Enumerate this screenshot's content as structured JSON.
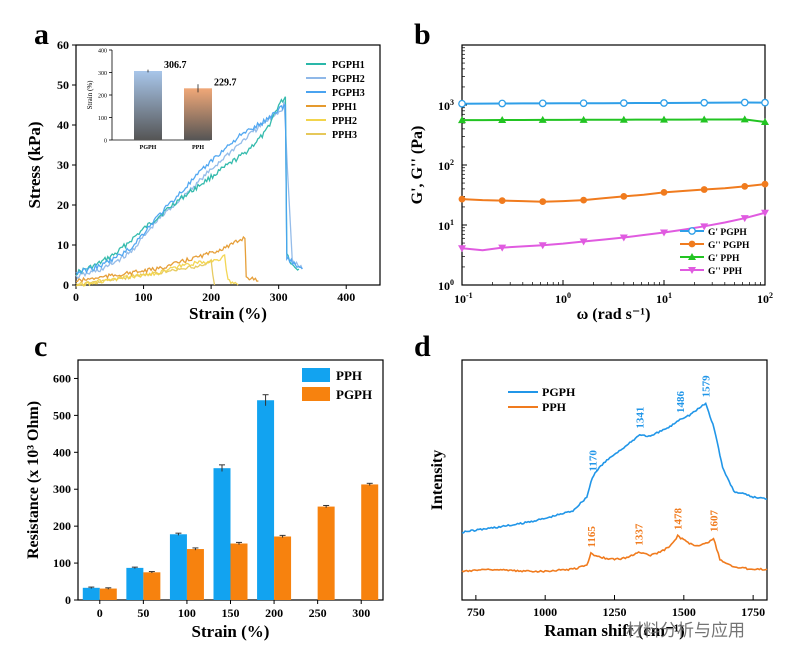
{
  "chart_data": [
    {
      "panel": "a",
      "type": "line",
      "title": "",
      "xlabel": "Strain (%)",
      "ylabel": "Stress (kPa)",
      "xlim": [
        0,
        450
      ],
      "ylim": [
        0,
        60
      ],
      "xticks": [
        "0",
        "100",
        "200",
        "300",
        "400"
      ],
      "yticks": [
        "0",
        "10",
        "20",
        "30",
        "40",
        "50",
        "60"
      ],
      "legend_position": "top-right",
      "series": [
        {
          "name": "PGPH1",
          "color": "#2ab7a9",
          "x": [
            0,
            30,
            60,
            100,
            150,
            200,
            250,
            280,
            300,
            310,
            312,
            320,
            330
          ],
          "y": [
            3,
            5,
            8,
            14,
            21,
            27,
            33,
            38,
            45,
            47,
            8,
            5,
            4
          ]
        },
        {
          "name": "PGPH2",
          "color": "#8fb8e8",
          "x": [
            0,
            40,
            80,
            120,
            170,
            220,
            260,
            290,
            305,
            308,
            320,
            335
          ],
          "y": [
            2,
            4,
            8,
            16,
            24,
            32,
            38,
            42,
            44,
            46,
            6,
            4
          ]
        },
        {
          "name": "PGPH3",
          "color": "#4aa3f0",
          "x": [
            0,
            40,
            80,
            120,
            160,
            200,
            240,
            280,
            300,
            310,
            312,
            325,
            335
          ],
          "y": [
            3,
            5,
            9,
            17,
            24,
            31,
            37,
            41,
            44,
            45,
            7,
            5,
            4
          ]
        },
        {
          "name": "PPH1",
          "color": "#e59a2e",
          "x": [
            0,
            40,
            80,
            120,
            160,
            200,
            230,
            250,
            252,
            270
          ],
          "y": [
            1,
            2,
            3,
            4,
            6,
            8,
            10,
            12,
            2,
            1
          ]
        },
        {
          "name": "PPH2",
          "color": "#f2d44c",
          "x": [
            0,
            40,
            80,
            120,
            160,
            200,
            220,
            225,
            240
          ],
          "y": [
            0,
            1,
            2,
            3,
            5,
            6,
            7,
            1,
            0
          ]
        },
        {
          "name": "PPH3",
          "color": "#e6c85a",
          "x": [
            0,
            40,
            80,
            120,
            160,
            190,
            200,
            205
          ],
          "y": [
            0,
            1,
            2,
            3,
            4,
            5,
            6,
            0
          ]
        }
      ],
      "inset": {
        "type": "bar",
        "ylabel": "Strain (%)",
        "ylim": [
          0,
          400
        ],
        "yticks": [
          "0",
          "100",
          "200",
          "300",
          "400"
        ],
        "categories": [
          "PGPH",
          "PPH"
        ],
        "values": [
          306.7,
          229.7
        ],
        "errors": [
          6,
          18
        ],
        "value_labels": [
          "306.7",
          "229.7"
        ],
        "colors": [
          "#a8c6ea",
          "#f0a878"
        ]
      }
    },
    {
      "panel": "b",
      "type": "line",
      "title": "",
      "xlabel": "ω (rad s⁻¹)",
      "ylabel": "G', G'' (Pa)",
      "xscale": "log",
      "yscale": "log",
      "xlim": [
        0.1,
        100
      ],
      "ylim": [
        1,
        10000
      ],
      "legend_position": "bottom-right",
      "series": [
        {
          "name": "G' PGPH",
          "color": "#2f9fe8",
          "marker": "circle-open",
          "x": [
            0.1,
            0.16,
            0.25,
            0.4,
            0.63,
            1,
            1.6,
            2.5,
            4,
            6.3,
            10,
            16,
            25,
            40,
            63,
            100
          ],
          "y": [
            1050,
            1055,
            1060,
            1062,
            1065,
            1068,
            1070,
            1072,
            1075,
            1078,
            1080,
            1085,
            1090,
            1095,
            1100,
            1095
          ]
        },
        {
          "name": "G'' PGPH",
          "color": "#f07b1e",
          "marker": "circle",
          "x": [
            0.1,
            0.16,
            0.25,
            0.4,
            0.63,
            1,
            1.6,
            2.5,
            4,
            6.3,
            10,
            16,
            25,
            40,
            63,
            100
          ],
          "y": [
            27,
            26,
            25.5,
            25,
            24.5,
            25,
            26,
            28,
            30,
            32,
            35,
            37,
            39,
            41,
            44,
            48
          ]
        },
        {
          "name": "G' PPH",
          "color": "#22c422",
          "marker": "triangle-up",
          "x": [
            0.1,
            0.16,
            0.25,
            0.4,
            0.63,
            1,
            1.6,
            2.5,
            4,
            6.3,
            10,
            16,
            25,
            40,
            63,
            100
          ],
          "y": [
            560,
            560,
            562,
            563,
            565,
            565,
            566,
            567,
            568,
            570,
            571,
            572,
            573,
            574,
            575,
            520
          ]
        },
        {
          "name": "G'' PPH",
          "color": "#e05be0",
          "marker": "triangle-down",
          "x": [
            0.1,
            0.16,
            0.25,
            0.4,
            0.63,
            1,
            1.6,
            2.5,
            4,
            6.3,
            10,
            16,
            25,
            40,
            63,
            100
          ],
          "y": [
            4.1,
            3.8,
            4.2,
            4.4,
            4.6,
            4.9,
            5.3,
            5.7,
            6.2,
            6.8,
            7.5,
            8.4,
            9.5,
            11,
            13,
            16
          ]
        }
      ]
    },
    {
      "panel": "c",
      "type": "bar",
      "title": "",
      "xlabel": "Strain (%)",
      "ylabel": "Resistance (x 10³ Ohm)",
      "ylim": [
        0,
        650
      ],
      "yticks": [
        "0",
        "100",
        "200",
        "300",
        "400",
        "500",
        "600"
      ],
      "categories": [
        "0",
        "50",
        "100",
        "150",
        "200",
        "250",
        "300"
      ],
      "legend_position": "top-right",
      "series": [
        {
          "name": "PPH",
          "color": "#12a3f0",
          "values": [
            33,
            87,
            178,
            357,
            541,
            null,
            null
          ],
          "errors": [
            2,
            2,
            3,
            9,
            15,
            0,
            0
          ]
        },
        {
          "name": "PGPH",
          "color": "#f7820e",
          "values": [
            31,
            75,
            138,
            153,
            172,
            253,
            313
          ],
          "errors": [
            2,
            2,
            3,
            3,
            3,
            3,
            3
          ]
        }
      ]
    },
    {
      "panel": "d",
      "type": "line",
      "title": "",
      "xlabel": "Raman shift (cm⁻¹)",
      "ylabel": "Intensity",
      "xlim": [
        700,
        1800
      ],
      "xticks": [
        "750",
        "1000",
        "1250",
        "1500",
        "1750"
      ],
      "legend_position": "top-left",
      "series": [
        {
          "name": "PGPH",
          "color": "#2196e8",
          "x": [
            700,
            800,
            900,
            1000,
            1100,
            1150,
            1170,
            1200,
            1250,
            1300,
            1341,
            1380,
            1420,
            1450,
            1486,
            1520,
            1550,
            1579,
            1610,
            1640,
            1680,
            1750,
            1800
          ],
          "y": [
            0.22,
            0.24,
            0.26,
            0.29,
            0.33,
            0.4,
            0.5,
            0.56,
            0.62,
            0.67,
            0.72,
            0.71,
            0.74,
            0.76,
            0.8,
            0.82,
            0.85,
            0.88,
            0.75,
            0.55,
            0.43,
            0.4,
            0.39
          ],
          "peak_labels": [
            {
              "x": 1170,
              "y": 0.5,
              "label": "1170"
            },
            {
              "x": 1341,
              "y": 0.72,
              "label": "1341"
            },
            {
              "x": 1486,
              "y": 0.8,
              "label": "1486"
            },
            {
              "x": 1579,
              "y": 0.88,
              "label": "1579"
            }
          ]
        },
        {
          "name": "PPH",
          "color": "#f07b1e",
          "x": [
            700,
            800,
            900,
            1000,
            1100,
            1150,
            1165,
            1200,
            1250,
            1300,
            1337,
            1380,
            1420,
            1450,
            1478,
            1520,
            1560,
            1590,
            1607,
            1630,
            1680,
            1750,
            1800
          ],
          "y": [
            0.02,
            0.03,
            0.02,
            0.02,
            0.03,
            0.05,
            0.11,
            0.09,
            0.08,
            0.09,
            0.12,
            0.1,
            0.12,
            0.15,
            0.2,
            0.16,
            0.15,
            0.17,
            0.19,
            0.08,
            0.04,
            0.03,
            0.03
          ],
          "peak_labels": [
            {
              "x": 1165,
              "y": 0.11,
              "label": "1165"
            },
            {
              "x": 1337,
              "y": 0.12,
              "label": "1337"
            },
            {
              "x": 1478,
              "y": 0.2,
              "label": "1478"
            },
            {
              "x": 1607,
              "y": 0.19,
              "label": "1607"
            }
          ]
        }
      ]
    }
  ],
  "panel_labels": [
    "a",
    "b",
    "c",
    "d"
  ],
  "watermark": "材料分析与应用"
}
